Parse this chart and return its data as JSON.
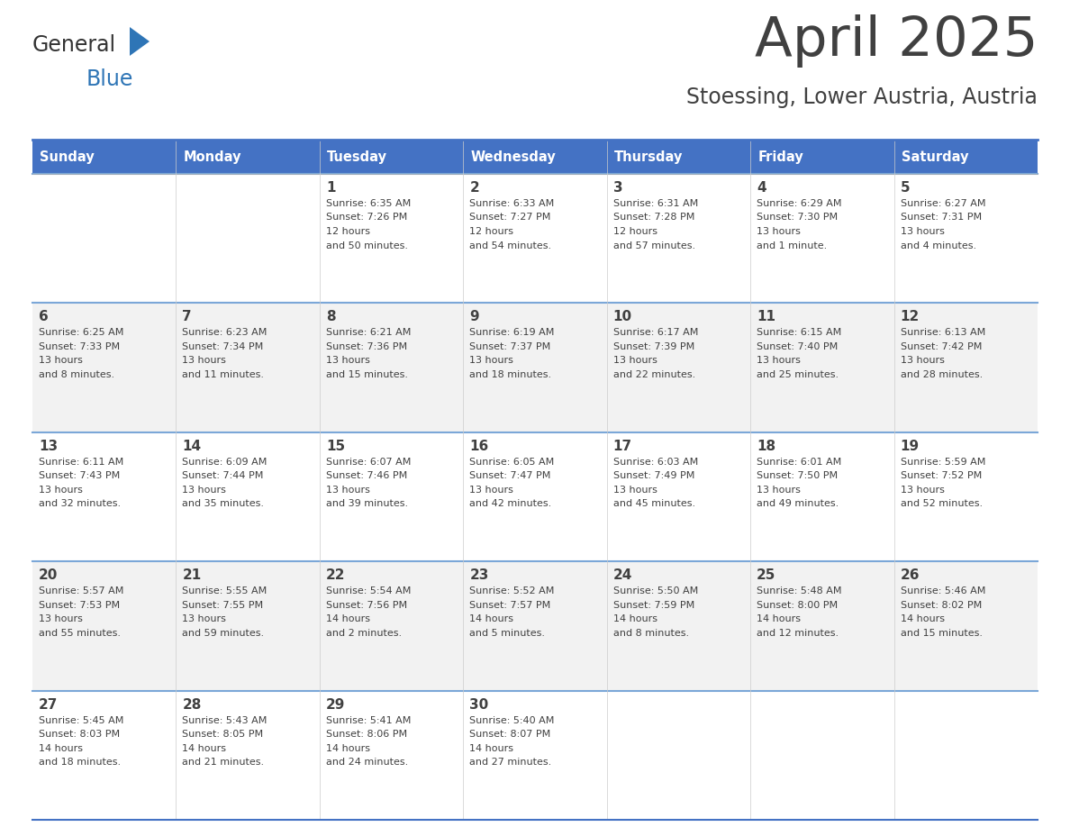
{
  "title": "April 2025",
  "subtitle": "Stoessing, Lower Austria, Austria",
  "header_bg": "#4472C4",
  "header_text_color": "#FFFFFF",
  "days_of_week": [
    "Sunday",
    "Monday",
    "Tuesday",
    "Wednesday",
    "Thursday",
    "Friday",
    "Saturday"
  ],
  "weeks": [
    [
      {
        "day": "",
        "sunrise": "",
        "sunset": "",
        "daylight": ""
      },
      {
        "day": "",
        "sunrise": "",
        "sunset": "",
        "daylight": ""
      },
      {
        "day": "1",
        "sunrise": "6:35 AM",
        "sunset": "7:26 PM",
        "daylight": "12 hours and 50 minutes."
      },
      {
        "day": "2",
        "sunrise": "6:33 AM",
        "sunset": "7:27 PM",
        "daylight": "12 hours and 54 minutes."
      },
      {
        "day": "3",
        "sunrise": "6:31 AM",
        "sunset": "7:28 PM",
        "daylight": "12 hours and 57 minutes."
      },
      {
        "day": "4",
        "sunrise": "6:29 AM",
        "sunset": "7:30 PM",
        "daylight": "13 hours and 1 minute."
      },
      {
        "day": "5",
        "sunrise": "6:27 AM",
        "sunset": "7:31 PM",
        "daylight": "13 hours and 4 minutes."
      }
    ],
    [
      {
        "day": "6",
        "sunrise": "6:25 AM",
        "sunset": "7:33 PM",
        "daylight": "13 hours and 8 minutes."
      },
      {
        "day": "7",
        "sunrise": "6:23 AM",
        "sunset": "7:34 PM",
        "daylight": "13 hours and 11 minutes."
      },
      {
        "day": "8",
        "sunrise": "6:21 AM",
        "sunset": "7:36 PM",
        "daylight": "13 hours and 15 minutes."
      },
      {
        "day": "9",
        "sunrise": "6:19 AM",
        "sunset": "7:37 PM",
        "daylight": "13 hours and 18 minutes."
      },
      {
        "day": "10",
        "sunrise": "6:17 AM",
        "sunset": "7:39 PM",
        "daylight": "13 hours and 22 minutes."
      },
      {
        "day": "11",
        "sunrise": "6:15 AM",
        "sunset": "7:40 PM",
        "daylight": "13 hours and 25 minutes."
      },
      {
        "day": "12",
        "sunrise": "6:13 AM",
        "sunset": "7:42 PM",
        "daylight": "13 hours and 28 minutes."
      }
    ],
    [
      {
        "day": "13",
        "sunrise": "6:11 AM",
        "sunset": "7:43 PM",
        "daylight": "13 hours and 32 minutes."
      },
      {
        "day": "14",
        "sunrise": "6:09 AM",
        "sunset": "7:44 PM",
        "daylight": "13 hours and 35 minutes."
      },
      {
        "day": "15",
        "sunrise": "6:07 AM",
        "sunset": "7:46 PM",
        "daylight": "13 hours and 39 minutes."
      },
      {
        "day": "16",
        "sunrise": "6:05 AM",
        "sunset": "7:47 PM",
        "daylight": "13 hours and 42 minutes."
      },
      {
        "day": "17",
        "sunrise": "6:03 AM",
        "sunset": "7:49 PM",
        "daylight": "13 hours and 45 minutes."
      },
      {
        "day": "18",
        "sunrise": "6:01 AM",
        "sunset": "7:50 PM",
        "daylight": "13 hours and 49 minutes."
      },
      {
        "day": "19",
        "sunrise": "5:59 AM",
        "sunset": "7:52 PM",
        "daylight": "13 hours and 52 minutes."
      }
    ],
    [
      {
        "day": "20",
        "sunrise": "5:57 AM",
        "sunset": "7:53 PM",
        "daylight": "13 hours and 55 minutes."
      },
      {
        "day": "21",
        "sunrise": "5:55 AM",
        "sunset": "7:55 PM",
        "daylight": "13 hours and 59 minutes."
      },
      {
        "day": "22",
        "sunrise": "5:54 AM",
        "sunset": "7:56 PM",
        "daylight": "14 hours and 2 minutes."
      },
      {
        "day": "23",
        "sunrise": "5:52 AM",
        "sunset": "7:57 PM",
        "daylight": "14 hours and 5 minutes."
      },
      {
        "day": "24",
        "sunrise": "5:50 AM",
        "sunset": "7:59 PM",
        "daylight": "14 hours and 8 minutes."
      },
      {
        "day": "25",
        "sunrise": "5:48 AM",
        "sunset": "8:00 PM",
        "daylight": "14 hours and 12 minutes."
      },
      {
        "day": "26",
        "sunrise": "5:46 AM",
        "sunset": "8:02 PM",
        "daylight": "14 hours and 15 minutes."
      }
    ],
    [
      {
        "day": "27",
        "sunrise": "5:45 AM",
        "sunset": "8:03 PM",
        "daylight": "14 hours and 18 minutes."
      },
      {
        "day": "28",
        "sunrise": "5:43 AM",
        "sunset": "8:05 PM",
        "daylight": "14 hours and 21 minutes."
      },
      {
        "day": "29",
        "sunrise": "5:41 AM",
        "sunset": "8:06 PM",
        "daylight": "14 hours and 24 minutes."
      },
      {
        "day": "30",
        "sunrise": "5:40 AM",
        "sunset": "8:07 PM",
        "daylight": "14 hours and 27 minutes."
      },
      {
        "day": "",
        "sunrise": "",
        "sunset": "",
        "daylight": ""
      },
      {
        "day": "",
        "sunrise": "",
        "sunset": "",
        "daylight": ""
      },
      {
        "day": "",
        "sunrise": "",
        "sunset": "",
        "daylight": ""
      }
    ]
  ],
  "row_colors": [
    "#FFFFFF",
    "#F2F2F2"
  ],
  "border_color": "#4472C4",
  "separator_color": "#7BA7D8",
  "text_color": "#404040",
  "logo_general_color": "#333333",
  "logo_blue_color": "#2E75B6",
  "logo_triangle_color": "#2E75B6"
}
